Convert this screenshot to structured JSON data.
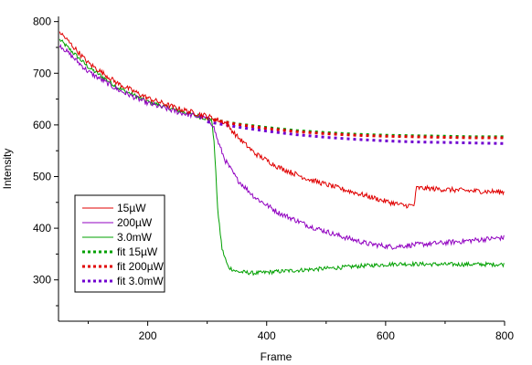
{
  "chart_data": {
    "type": "line",
    "xlabel": "Frame",
    "ylabel": "Intensity",
    "xlim": [
      50,
      800
    ],
    "ylim": [
      220,
      810
    ],
    "x_ticks": [
      200,
      400,
      600,
      800
    ],
    "y_ticks": [
      300,
      400,
      500,
      600,
      700,
      800
    ],
    "grid": false,
    "legend_position": "bottom-left",
    "series": [
      {
        "name": "15µW",
        "style": "solid",
        "color": "#e00000",
        "noise": 5,
        "points": [
          [
            52,
            780
          ],
          [
            100,
            720
          ],
          [
            150,
            680
          ],
          [
            200,
            652
          ],
          [
            250,
            632
          ],
          [
            300,
            617
          ],
          [
            330,
            605
          ],
          [
            350,
            578
          ],
          [
            380,
            545
          ],
          [
            420,
            518
          ],
          [
            470,
            495
          ],
          [
            520,
            478
          ],
          [
            570,
            462
          ],
          [
            600,
            452
          ],
          [
            630,
            444
          ],
          [
            648,
            444
          ],
          [
            652,
            478
          ],
          [
            700,
            475
          ],
          [
            750,
            472
          ],
          [
            800,
            470
          ]
        ]
      },
      {
        "name": "200µW",
        "style": "solid",
        "color": "#9000c0",
        "noise": 5,
        "points": [
          [
            52,
            755
          ],
          [
            100,
            703
          ],
          [
            150,
            668
          ],
          [
            200,
            642
          ],
          [
            250,
            625
          ],
          [
            300,
            612
          ],
          [
            310,
            600
          ],
          [
            318,
            568
          ],
          [
            330,
            532
          ],
          [
            350,
            495
          ],
          [
            380,
            460
          ],
          [
            420,
            430
          ],
          [
            470,
            405
          ],
          [
            520,
            386
          ],
          [
            570,
            370
          ],
          [
            610,
            364
          ],
          [
            650,
            368
          ],
          [
            700,
            372
          ],
          [
            750,
            377
          ],
          [
            800,
            382
          ]
        ]
      },
      {
        "name": "3.0mW",
        "style": "solid",
        "color": "#00a000",
        "noise": 4,
        "points": [
          [
            52,
            765
          ],
          [
            100,
            712
          ],
          [
            150,
            672
          ],
          [
            200,
            645
          ],
          [
            250,
            628
          ],
          [
            300,
            612
          ],
          [
            308,
            608
          ],
          [
            312,
            560
          ],
          [
            318,
            430
          ],
          [
            325,
            360
          ],
          [
            335,
            325
          ],
          [
            350,
            316
          ],
          [
            380,
            313
          ],
          [
            430,
            317
          ],
          [
            500,
            322
          ],
          [
            560,
            327
          ],
          [
            620,
            331
          ],
          [
            700,
            330
          ],
          [
            750,
            330
          ],
          [
            800,
            330
          ]
        ]
      },
      {
        "name": "fit 15µW",
        "style": "dotted",
        "color": "#00a000",
        "points": [
          [
            300,
            612
          ],
          [
            350,
            602
          ],
          [
            400,
            595
          ],
          [
            450,
            589
          ],
          [
            500,
            585
          ],
          [
            550,
            582
          ],
          [
            600,
            580
          ],
          [
            650,
            579
          ],
          [
            700,
            578
          ],
          [
            750,
            577
          ],
          [
            800,
            577
          ]
        ]
      },
      {
        "name": "fit 200µW",
        "style": "dotted",
        "color": "#e00000",
        "points": [
          [
            300,
            612
          ],
          [
            350,
            601
          ],
          [
            400,
            593
          ],
          [
            450,
            587
          ],
          [
            500,
            583
          ],
          [
            550,
            580
          ],
          [
            600,
            578
          ],
          [
            650,
            577
          ],
          [
            700,
            576
          ],
          [
            750,
            575
          ],
          [
            800,
            575
          ]
        ]
      },
      {
        "name": "fit 3.0mW",
        "style": "dotted",
        "color": "#7000d0",
        "points": [
          [
            300,
            606
          ],
          [
            350,
            596
          ],
          [
            400,
            588
          ],
          [
            450,
            581
          ],
          [
            500,
            576
          ],
          [
            550,
            572
          ],
          [
            600,
            569
          ],
          [
            650,
            567
          ],
          [
            700,
            566
          ],
          [
            750,
            565
          ],
          [
            800,
            564
          ]
        ]
      }
    ]
  }
}
